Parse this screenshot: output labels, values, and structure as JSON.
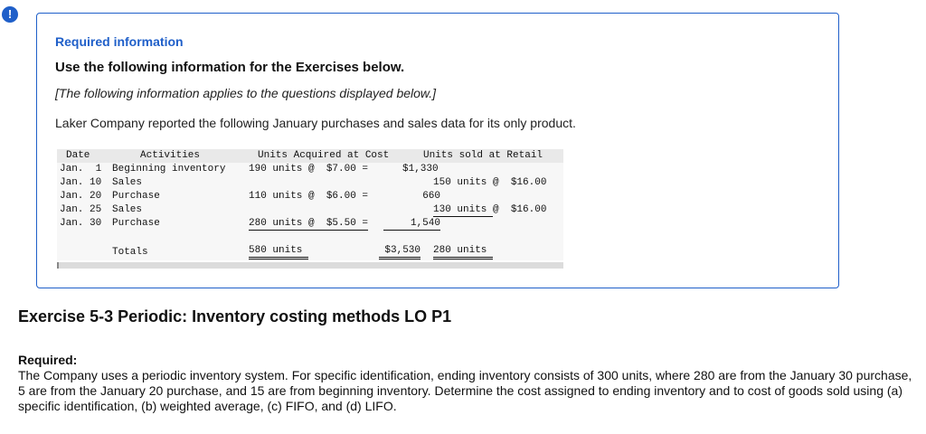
{
  "alert": {
    "symbol": "!"
  },
  "info": {
    "heading": "Required information",
    "subheading": "Use the following information for the Exercises below.",
    "note": "[The following information applies to the questions displayed below.]",
    "description": "Laker Company reported the following January purchases and sales data for its only product."
  },
  "table": {
    "headers": {
      "date": "Date",
      "activities": "Activities",
      "acquired": "Units Acquired at Cost",
      "sold": "Units sold at Retail"
    },
    "rows": [
      {
        "date": "Jan.  1",
        "activity": "Beginning inventory",
        "acquired": "190 units @  $7.00 =",
        "cost": "$1,330",
        "sold": ""
      },
      {
        "date": "Jan. 10",
        "activity": "Sales",
        "acquired": "",
        "cost": "",
        "sold": "150 units @  $16.00"
      },
      {
        "date": "Jan. 20",
        "activity": "Purchase",
        "acquired": "110 units @  $6.00 =",
        "cost": "660",
        "sold": ""
      },
      {
        "date": "Jan. 25",
        "activity": "Sales",
        "acquired": "",
        "cost": "",
        "sold": "130 units @  $16.00"
      },
      {
        "date": "Jan. 30",
        "activity": "Purchase",
        "acquired": "280 units @  $5.50 =",
        "cost": "1,540",
        "sold": ""
      }
    ],
    "totals": {
      "label": "Totals",
      "units": "580 units",
      "cost": "$3,530",
      "sold": "280 units"
    }
  },
  "exercise": {
    "title": "Exercise 5-3 Periodic: Inventory costing methods LO P1",
    "required_label": "Required:",
    "required_text": "The Company uses a periodic inventory system. For specific identification, ending inventory consists of 300 units, where 280 are from the January 30 purchase, 5 are from the January 20 purchase, and 15 are from beginning inventory. Determine the cost assigned to ending inventory and to cost of goods sold using (a) specific identification, (b) weighted average, (c) FIFO, and (d) LIFO."
  },
  "colors": {
    "accent": "#1f5fc9",
    "table_header": "#e9e9e9",
    "table_body": "#f7f7f7"
  }
}
